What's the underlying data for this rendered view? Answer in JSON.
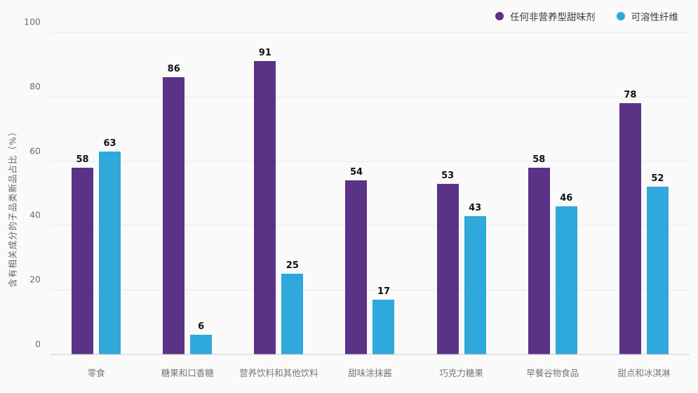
{
  "chart_data": {
    "type": "bar",
    "title": "",
    "xlabel": "",
    "ylabel": "含有相关成分的子品类新品占比（%）",
    "categories": [
      "零食",
      "糖果和口香糖",
      "营养饮料和其他饮料",
      "甜味涂抹酱",
      "巧克力糖果",
      "早餐谷物食品",
      "甜点和冰淇淋"
    ],
    "series": [
      {
        "name": "任何非营养型甜味剂",
        "color": "#5a3286",
        "values": [
          58,
          86,
          91,
          54,
          53,
          58,
          78
        ]
      },
      {
        "name": "可溶性纤维",
        "color": "#2fa8db",
        "values": [
          63,
          6,
          25,
          17,
          43,
          46,
          52
        ]
      }
    ],
    "ylim": [
      0,
      100
    ],
    "yticks": [
      0,
      20,
      40,
      60,
      80,
      100
    ],
    "grid": true,
    "legend_position": "top-right"
  },
  "colors": {
    "background": "#fafafa",
    "gridline": "#e8e8e8",
    "baseline": "#c9c9c9",
    "tick_text": "#6b6b6b",
    "value_label": "#111111"
  }
}
